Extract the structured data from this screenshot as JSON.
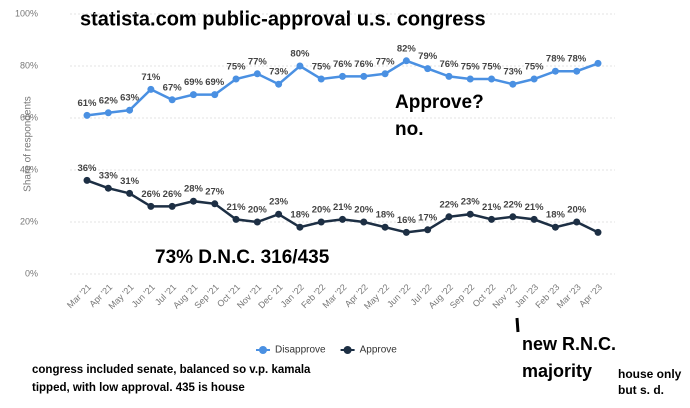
{
  "chart_data": {
    "type": "line",
    "title": "statista.com public-approval u.s. congress",
    "y_label": "Share of respondents",
    "categories": [
      "Mar '21",
      "Apr '21",
      "May '21",
      "Jun '21",
      "Jul '21",
      "Aug '21",
      "Sep '21",
      "Oct '21",
      "Nov '21",
      "Dec '21",
      "Jan '22",
      "Feb '22",
      "Mar '22",
      "Apr '22",
      "May '22",
      "Jun '22",
      "Jul '22",
      "Aug '22",
      "Sep '22",
      "Oct '22",
      "Nov '22",
      "Jan '23",
      "Feb '23",
      "Mar '23",
      "Apr '23"
    ],
    "series": [
      {
        "name": "Disapprove",
        "color": "#4a90e2",
        "values": [
          61,
          62,
          63,
          71,
          67,
          69,
          69,
          75,
          77,
          73,
          80,
          75,
          76,
          76,
          77,
          82,
          79,
          76,
          75,
          75,
          73,
          75,
          78,
          78,
          81
        ],
        "value_labels": [
          "61%",
          "62%",
          "63%",
          "71%",
          "67%",
          "69%",
          "69%",
          "75%",
          "77%",
          "73%",
          "80%",
          "75%",
          "76%",
          "76%",
          "77%",
          "82%",
          "79%",
          "76%",
          "75%",
          "75%",
          "73%",
          "75%",
          "78%",
          "78%",
          null
        ]
      },
      {
        "name": "Approve",
        "color": "#1d2f44",
        "values": [
          36,
          33,
          31,
          26,
          26,
          28,
          27,
          21,
          20,
          23,
          18,
          20,
          21,
          20,
          18,
          16,
          17,
          22,
          23,
          21,
          22,
          21,
          18,
          20,
          16
        ],
        "value_labels": [
          "36%",
          "33%",
          "31%",
          "26%",
          "26%",
          "28%",
          "27%",
          "21%",
          "20%",
          "23%",
          "18%",
          "20%",
          "21%",
          "20%",
          "18%",
          "16%",
          "17%",
          "22%",
          "23%",
          "21%",
          "22%",
          "21%",
          "18%",
          "20%",
          null
        ]
      }
    ],
    "ylim": [
      0,
      100
    ],
    "yticks": [
      {
        "value": 0,
        "label": "0%"
      },
      {
        "value": 20,
        "label": "20%"
      },
      {
        "value": 40,
        "label": "40%"
      },
      {
        "value": 60,
        "label": "60%"
      },
      {
        "value": 80,
        "label": "80%"
      },
      {
        "value": 100,
        "label": "100%"
      }
    ],
    "grid": true,
    "legend": "bottom",
    "annotations": [
      "Approve?",
      "no.",
      "73% D.N.C. 316/435",
      "new R.N.C.",
      "majority",
      "house only",
      "but s. d.",
      "congress included senate, balanced so v.p. kamala",
      "tipped, with low approval. 435 is house"
    ]
  }
}
